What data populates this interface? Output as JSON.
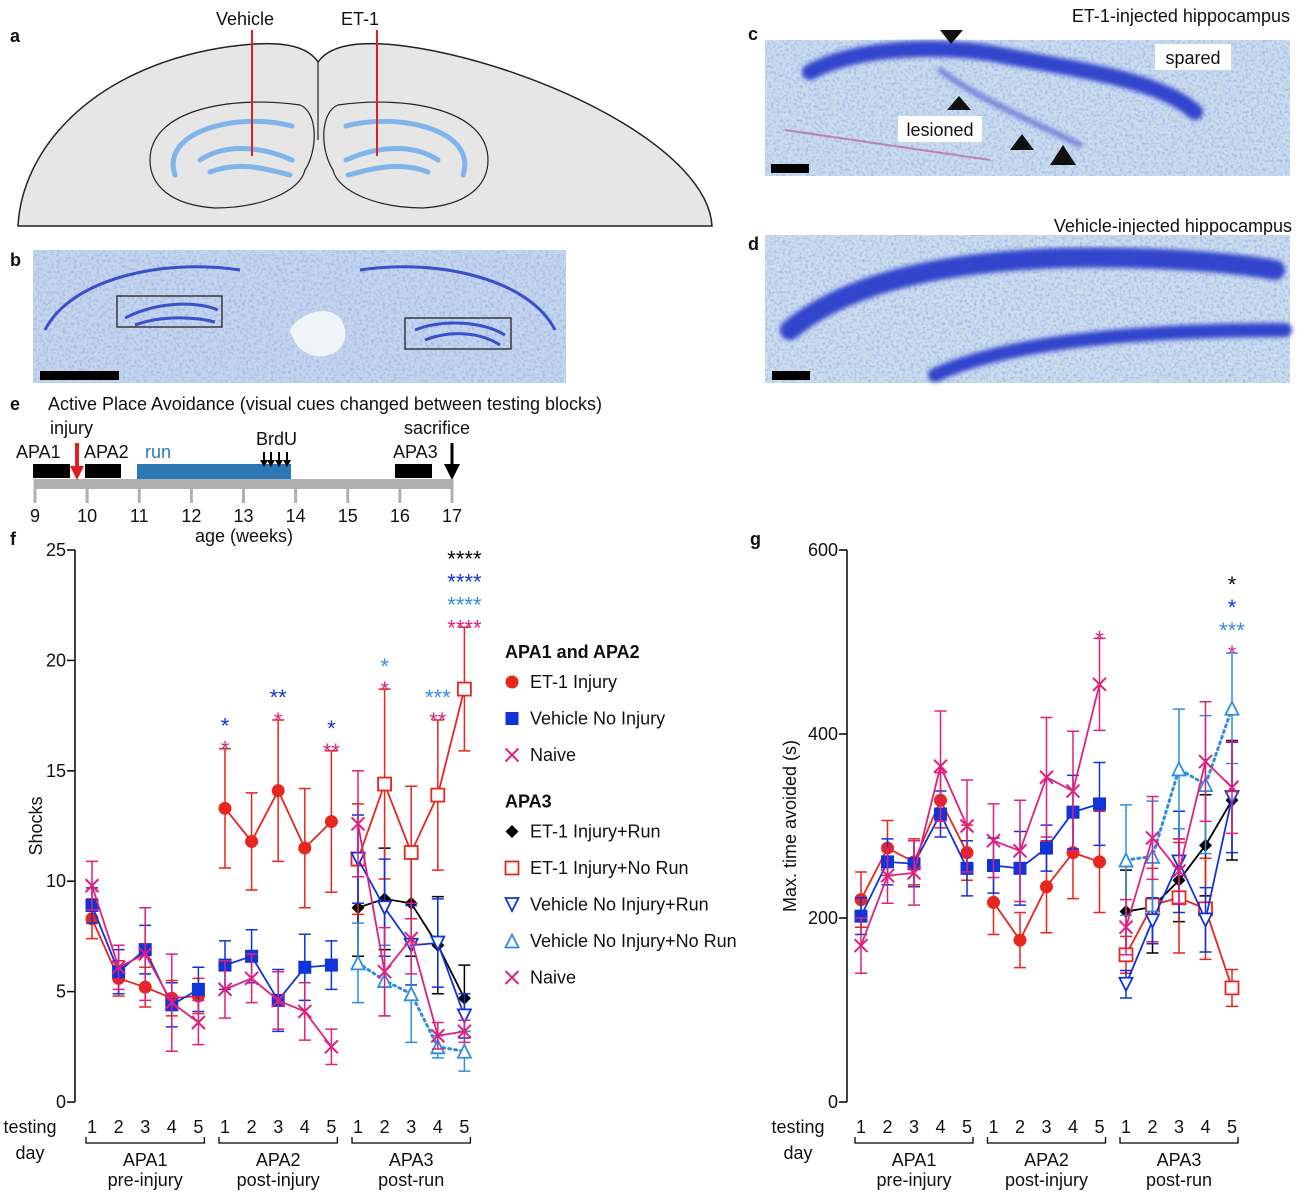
{
  "panels": {
    "a": {
      "letter": "a",
      "labels": [
        "Vehicle",
        "ET-1"
      ]
    },
    "b": {
      "letter": "b"
    },
    "c": {
      "letter": "c",
      "title": "ET-1-injected hippocampus",
      "labels": [
        "spared",
        "lesioned"
      ]
    },
    "d": {
      "letter": "d",
      "title": "Vehicle-injected hippocampus"
    },
    "e": {
      "letter": "e",
      "title": "Active Place Avoidance (visual cues changed between testing blocks)",
      "events": [
        "APA1",
        "injury",
        "APA2",
        "run",
        "BrdU",
        "APA3",
        "sacrifice"
      ],
      "ticks": [
        9,
        10,
        11,
        12,
        13,
        14,
        15,
        16,
        17
      ],
      "xlabel": "age (weeks)"
    },
    "f": {
      "letter": "f"
    },
    "g": {
      "letter": "g"
    }
  },
  "chart_data": [
    {
      "type": "line",
      "ylabel": "Shocks",
      "xlabel": [
        "testing",
        "day"
      ],
      "ylim": [
        0,
        25
      ],
      "yticks": [
        0,
        5,
        10,
        15,
        20,
        25
      ],
      "groups": [
        {
          "label": "APA1",
          "sublabel": "pre-injury",
          "categories": [
            "1",
            "2",
            "3",
            "4",
            "5"
          ]
        },
        {
          "label": "APA2",
          "sublabel": "post-injury",
          "categories": [
            "1",
            "2",
            "3",
            "4",
            "5"
          ]
        },
        {
          "label": "APA3",
          "sublabel": "post-run",
          "categories": [
            "1",
            "2",
            "3",
            "4",
            "5"
          ]
        }
      ],
      "series_groups": [
        {
          "title": "APA1 and APA2",
          "series": [
            {
              "name": "ET-1 Injury",
              "color": "#e8251f",
              "marker": "circle",
              "values": [
                8.3,
                5.6,
                5.2,
                4.7,
                4.8,
                13.3,
                11.8,
                14.1,
                11.5,
                12.7,
                null,
                null,
                null,
                null,
                null
              ],
              "errors": [
                0.9,
                0.8,
                0.9,
                0.8,
                0.8,
                2.7,
                2.2,
                3.2,
                2.7,
                3.2,
                null,
                null,
                null,
                null,
                null
              ]
            },
            {
              "name": "Vehicle No Injury",
              "color": "#1034d8",
              "marker": "square",
              "values": [
                8.9,
                5.9,
                6.9,
                4.4,
                5.1,
                6.2,
                6.6,
                4.6,
                6.1,
                6.2,
                null,
                null,
                null,
                null,
                null
              ],
              "errors": [
                0.8,
                1.0,
                1.1,
                1.0,
                1.0,
                1.1,
                1.2,
                1.4,
                1.5,
                1.1,
                null,
                null,
                null,
                null,
                null
              ]
            },
            {
              "name": "Naive",
              "color": "#e0207f",
              "marker": "x",
              "values": [
                9.8,
                6.1,
                6.7,
                4.5,
                3.6,
                5.1,
                5.6,
                4.6,
                4.1,
                2.5,
                null,
                null,
                null,
                null,
                null
              ],
              "errors": [
                1.1,
                1.0,
                2.1,
                2.2,
                1.0,
                1.3,
                1.1,
                1.3,
                1.3,
                0.8,
                null,
                null,
                null,
                null,
                null
              ]
            }
          ]
        },
        {
          "title": "APA3",
          "series": [
            {
              "name": "ET-1 Injury+Run",
              "color": "#000000",
              "marker": "diamond",
              "values": [
                null,
                null,
                null,
                null,
                null,
                null,
                null,
                null,
                null,
                null,
                8.8,
                9.2,
                9.0,
                7.1,
                4.7
              ],
              "errors": [
                null,
                null,
                null,
                null,
                null,
                null,
                null,
                null,
                null,
                null,
                2.2,
                2.3,
                2.4,
                2.2,
                1.5
              ]
            },
            {
              "name": "ET-1 Injury+No Run",
              "color": "#e8251f",
              "marker": "open-square",
              "values": [
                null,
                null,
                null,
                null,
                null,
                null,
                null,
                null,
                null,
                null,
                11.0,
                14.4,
                11.3,
                13.9,
                18.7
              ],
              "errors": [
                null,
                null,
                null,
                null,
                null,
                null,
                null,
                null,
                null,
                null,
                2.5,
                4.3,
                3.0,
                3.4,
                2.8
              ]
            },
            {
              "name": "Vehicle No Injury+Run",
              "color": "#1034d8",
              "marker": "tri-down",
              "values": [
                null,
                null,
                null,
                null,
                null,
                null,
                null,
                null,
                null,
                null,
                11.0,
                8.8,
                7.1,
                7.2,
                3.9
              ],
              "errors": [
                null,
                null,
                null,
                null,
                null,
                null,
                null,
                null,
                null,
                null,
                2.0,
                2.2,
                1.8,
                2.0,
                1.0
              ]
            },
            {
              "name": "Vehicle No Injury+No Run",
              "color": "#2f8ee0",
              "marker": "tri-up",
              "linestyle": "dotted",
              "values": [
                null,
                null,
                null,
                null,
                null,
                null,
                null,
                null,
                null,
                null,
                6.3,
                5.5,
                4.9,
                2.5,
                2.3
              ],
              "errors": [
                null,
                null,
                null,
                null,
                null,
                null,
                null,
                null,
                null,
                null,
                1.8,
                1.6,
                2.2,
                0.5,
                0.9
              ]
            },
            {
              "name": "Naive",
              "color": "#e0207f",
              "marker": "x",
              "values": [
                null,
                null,
                null,
                null,
                null,
                null,
                null,
                null,
                null,
                null,
                12.6,
                5.9,
                7.4,
                3.0,
                3.2
              ],
              "errors": [
                null,
                null,
                null,
                null,
                null,
                null,
                null,
                null,
                null,
                null,
                2.4,
                2.0,
                1.6,
                0.6,
                0.5
              ]
            }
          ]
        }
      ],
      "stars": [
        null,
        null,
        null,
        null,
        null,
        [
          {
            "text": "*",
            "color": "#1034d8"
          },
          {
            "text": "*",
            "color": "#e0207f"
          }
        ],
        null,
        [
          {
            "text": "**",
            "color": "#1034d8"
          },
          {
            "text": "*",
            "color": "#e0207f"
          }
        ],
        null,
        [
          {
            "text": "*",
            "color": "#1034d8"
          },
          {
            "text": "**",
            "color": "#e0207f"
          }
        ],
        null,
        [
          {
            "text": "*",
            "color": "#2f8ee0"
          },
          {
            "text": "*",
            "color": "#e0207f"
          }
        ],
        null,
        [
          {
            "text": "***",
            "color": "#2f8ee0"
          },
          {
            "text": "**",
            "color": "#e0207f"
          }
        ],
        [
          {
            "text": "****",
            "color": "#000000"
          },
          {
            "text": "****",
            "color": "#1034d8"
          },
          {
            "text": "****",
            "color": "#2f8ee0"
          },
          {
            "text": "****",
            "color": "#e0207f"
          }
        ]
      ]
    },
    {
      "type": "line",
      "ylabel": "Max. time avoided (s)",
      "xlabel": [
        "testing",
        "day"
      ],
      "ylim": [
        0,
        600
      ],
      "yticks": [
        0,
        200,
        400,
        600
      ],
      "groups": [
        {
          "label": "APA1",
          "sublabel": "pre-injury",
          "categories": [
            "1",
            "2",
            "3",
            "4",
            "5"
          ]
        },
        {
          "label": "APA2",
          "sublabel": "post-injury",
          "categories": [
            "1",
            "2",
            "3",
            "4",
            "5"
          ]
        },
        {
          "label": "APA3",
          "sublabel": "post-run",
          "categories": [
            "1",
            "2",
            "3",
            "4",
            "5"
          ]
        }
      ],
      "series_groups": [
        {
          "series": [
            {
              "color": "#e8251f",
              "marker": "circle",
              "values": [
                220,
                276,
                261,
                328,
                271,
                217,
                176,
                234,
                271,
                261,
                null,
                null,
                null,
                null,
                null
              ],
              "errors": [
                30,
                30,
                25,
                30,
                30,
                35,
                30,
                50,
                50,
                55,
                null,
                null,
                null,
                null,
                null
              ]
            },
            {
              "color": "#1034d8",
              "marker": "square",
              "values": [
                202,
                261,
                259,
                313,
                254,
                257,
                254,
                276,
                315,
                324,
                null,
                null,
                null,
                null,
                null
              ],
              "errors": [
                20,
                25,
                25,
                25,
                30,
                30,
                40,
                25,
                40,
                45,
                null,
                null,
                null,
                null,
                null
              ]
            },
            {
              "color": "#e0207f",
              "marker": "x",
              "values": [
                170,
                246,
                249,
                365,
                300,
                284,
                273,
                353,
                338,
                454,
                null,
                null,
                null,
                null,
                null
              ],
              "errors": [
                30,
                30,
                35,
                60,
                50,
                40,
                55,
                65,
                65,
                50,
                null,
                null,
                null,
                null,
                null
              ]
            }
          ]
        },
        {
          "series": [
            {
              "color": "#000000",
              "marker": "diamond",
              "values": [
                null,
                null,
                null,
                null,
                null,
                null,
                null,
                null,
                null,
                null,
                207,
                212,
                241,
                279,
                328
              ],
              "errors": [
                null,
                null,
                null,
                null,
                null,
                null,
                null,
                null,
                null,
                null,
                45,
                50,
                45,
                55,
                65
              ]
            },
            {
              "color": "#e8251f",
              "marker": "open-square",
              "values": [
                null,
                null,
                null,
                null,
                null,
                null,
                null,
                null,
                null,
                null,
                160,
                214,
                222,
                210,
                124
              ],
              "errors": [
                null,
                null,
                null,
                null,
                null,
                null,
                null,
                null,
                null,
                null,
                20,
                40,
                60,
                55,
                20
              ]
            },
            {
              "color": "#1034d8",
              "marker": "tri-down",
              "values": [
                null,
                null,
                null,
                null,
                null,
                null,
                null,
                null,
                null,
                null,
                128,
                197,
                261,
                198,
                331
              ],
              "errors": [
                null,
                null,
                null,
                null,
                null,
                null,
                null,
                null,
                null,
                null,
                15,
                25,
                55,
                35,
                60
              ]
            },
            {
              "color": "#2f8ee0",
              "marker": "tri-up",
              "linestyle": "dotted",
              "values": [
                null,
                null,
                null,
                null,
                null,
                null,
                null,
                null,
                null,
                null,
                263,
                267,
                362,
                345,
                428
              ],
              "errors": [
                null,
                null,
                null,
                null,
                null,
                null,
                null,
                null,
                null,
                null,
                60,
                60,
                65,
                75,
                60
              ]
            },
            {
              "color": "#e0207f",
              "marker": "x",
              "values": [
                null,
                null,
                null,
                null,
                null,
                null,
                null,
                null,
                null,
                null,
                190,
                287,
                251,
                370,
                342
              ],
              "errors": [
                null,
                null,
                null,
                null,
                null,
                null,
                null,
                null,
                null,
                null,
                30,
                45,
                35,
                65,
                50
              ]
            }
          ]
        }
      ],
      "stars": [
        null,
        null,
        null,
        null,
        null,
        null,
        null,
        null,
        null,
        [
          {
            "text": "*",
            "color": "#e0207f"
          }
        ],
        null,
        null,
        null,
        null,
        [
          {
            "text": "*",
            "color": "#000000"
          },
          {
            "text": "*",
            "color": "#1034d8"
          },
          {
            "text": "***",
            "color": "#2f8ee0"
          },
          {
            "text": "*",
            "color": "#e0207f"
          }
        ]
      ]
    }
  ]
}
